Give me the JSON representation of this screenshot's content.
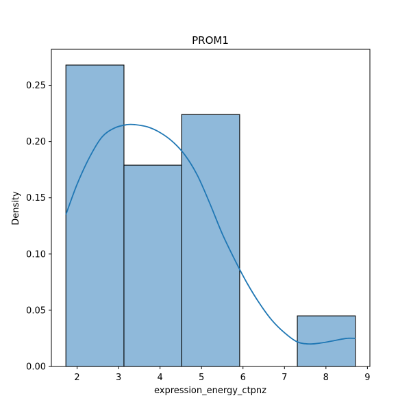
{
  "chart_data": {
    "type": "histogram",
    "title": "PROM1",
    "xlabel": "expression_energy_ctpnz",
    "ylabel": "Density",
    "xlim": [
      1.38,
      9.06
    ],
    "ylim": [
      0,
      0.282
    ],
    "xticks": [
      2,
      3,
      4,
      5,
      6,
      7,
      8,
      9
    ],
    "yticks": [
      0.0,
      0.05,
      0.1,
      0.15,
      0.2,
      0.25
    ],
    "ytick_labels": [
      "0.00",
      "0.05",
      "0.10",
      "0.15",
      "0.20",
      "0.25"
    ],
    "bins": [
      {
        "x0": 1.73,
        "x1": 3.13,
        "density": 0.268
      },
      {
        "x0": 3.13,
        "x1": 4.52,
        "density": 0.179
      },
      {
        "x0": 4.52,
        "x1": 5.92,
        "density": 0.224
      },
      {
        "x0": 5.92,
        "x1": 7.31,
        "density": 0.0
      },
      {
        "x0": 7.31,
        "x1": 8.71,
        "density": 0.045
      }
    ],
    "kde": {
      "x": [
        1.73,
        2.0,
        2.3,
        2.6,
        2.9,
        3.2,
        3.4,
        3.7,
        4.0,
        4.3,
        4.6,
        4.9,
        5.2,
        5.5,
        5.8,
        6.1,
        6.4,
        6.7,
        7.0,
        7.3,
        7.6,
        7.9,
        8.2,
        8.5,
        8.71
      ],
      "y": [
        0.135,
        0.162,
        0.186,
        0.204,
        0.212,
        0.215,
        0.215,
        0.213,
        0.208,
        0.2,
        0.188,
        0.17,
        0.145,
        0.118,
        0.095,
        0.074,
        0.056,
        0.041,
        0.03,
        0.022,
        0.02,
        0.021,
        0.023,
        0.025,
        0.025
      ]
    },
    "colors": {
      "bar_fill": "#8fb9da",
      "bar_edge": "#000000",
      "kde_line": "#1f77b4"
    },
    "grid": false,
    "legend": "none"
  }
}
